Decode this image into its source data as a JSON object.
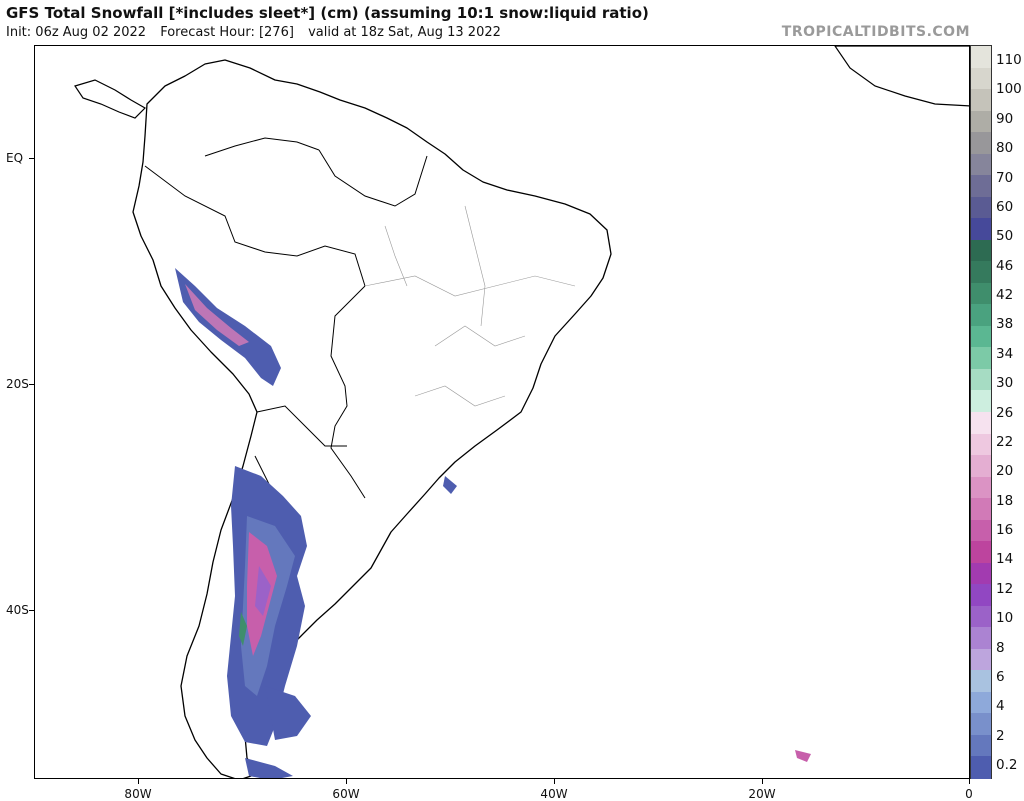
{
  "header": {
    "title": "GFS Total Snowfall [*includes sleet*] (cm) (assuming 10:1 snow:liquid ratio)",
    "init": "Init: 06z Aug 02 2022",
    "forecast_hour": "Forecast Hour: [276]",
    "valid": "valid at 18z Sat, Aug 13 2022",
    "brand": "TROPICALTIDBITS.COM"
  },
  "axes": {
    "lat_labels": [
      "EQ",
      "20S",
      "40S"
    ],
    "lon_labels": [
      "80W",
      "60W",
      "40W",
      "20W",
      "0"
    ]
  },
  "legend": {
    "labels": [
      "110",
      "100",
      "90",
      "80",
      "70",
      "60",
      "50",
      "46",
      "42",
      "38",
      "34",
      "30",
      "26",
      "22",
      "20",
      "18",
      "16",
      "14",
      "12",
      "10",
      "8",
      "6",
      "4",
      "2",
      "0.2"
    ],
    "colors": [
      "#e4e4dc",
      "#d7d6cd",
      "#c5c3ba",
      "#aeada6",
      "#98979a",
      "#86859b",
      "#6e6d96",
      "#5a5b93",
      "#46499a",
      "#2d6b52",
      "#357a5d",
      "#3f8e6c",
      "#4aa27f",
      "#5bb792",
      "#7ccaa7",
      "#a6dcc3",
      "#cdeedf",
      "#f6e2ef",
      "#eec8e0",
      "#e4aed2",
      "#db93c4",
      "#d17ab7",
      "#c75fab",
      "#bd449e",
      "#a23bb0",
      "#9147c2",
      "#9b62c8",
      "#ab83d2",
      "#bda5dd",
      "#a9c2e0",
      "#8ea9da",
      "#7990cb",
      "#6478bd",
      "#4e5daf"
    ]
  },
  "map": {
    "projection": "cylindrical",
    "region": "South America",
    "grid": false
  }
}
